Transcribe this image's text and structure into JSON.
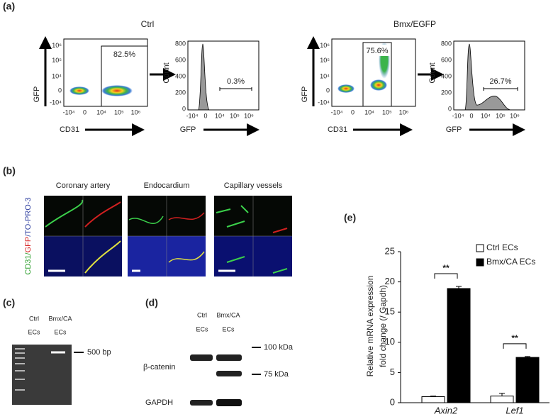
{
  "panel_labels": [
    "(a)",
    "(b)",
    "(c)",
    "(d)",
    "(e)"
  ],
  "flow": {
    "ctrl_title": "Ctrl",
    "bmx_title": "Bmx/EGFP",
    "dot_y_label": "GFP",
    "dot_x_label": "CD31",
    "hist_y_label": "Count",
    "hist_x_label": "GFP",
    "dot_yticks": [
      "10⁶",
      "10⁵",
      "10⁴",
      "0",
      "-10⁴"
    ],
    "dot_xticks": [
      "-10⁴",
      "0",
      "10⁴",
      "10⁵",
      "10⁶"
    ],
    "hist_yticks": [
      "800",
      "600",
      "400",
      "200",
      "0"
    ],
    "hist_xticks": [
      "-10⁴",
      "0",
      "10⁴",
      "10⁵",
      "10⁶"
    ],
    "ctrl_gate": "82.5%",
    "ctrl_hist_gate": "0.3%",
    "bmx_gate": "75.6%",
    "bmx_hist_gate": "26.7%"
  },
  "imaging": {
    "columns": [
      "Coronary artery",
      "Endocardium",
      "Capillary vessels"
    ],
    "stain": [
      "CD31/",
      "GFP",
      "/TO-PRO-3"
    ]
  },
  "gel": {
    "lanes": [
      [
        "Ctrl",
        "ECs"
      ],
      [
        "Bmx/CA",
        "ECs"
      ]
    ],
    "marker": "500 bp"
  },
  "western": {
    "lanes": [
      [
        "Ctrl",
        "ECs"
      ],
      [
        "Bmx/CA",
        "ECs"
      ]
    ],
    "markers": [
      "100 kDa",
      "75 kDa"
    ],
    "proteins": [
      "β-catenin",
      "GAPDH"
    ]
  },
  "chart_data": {
    "type": "bar",
    "y_label": [
      "Relative mRNA expression",
      "fold change (/ Gapdh)"
    ],
    "categories": [
      "Axin2",
      "Lef1"
    ],
    "series": [
      {
        "name": "Ctrl ECs",
        "color": "#ffffff",
        "values": [
          1,
          1.1
        ],
        "errors": [
          0.1,
          0.45
        ]
      },
      {
        "name": "Bmx/CA ECs",
        "color": "#000000",
        "values": [
          18.9,
          7.5
        ],
        "errors": [
          0.35,
          0.15
        ]
      }
    ],
    "ylim": [
      0,
      25
    ],
    "yticks": [
      0,
      5,
      10,
      15,
      20,
      25
    ],
    "annotations": [
      "**",
      "**"
    ],
    "legend": "top-right"
  }
}
